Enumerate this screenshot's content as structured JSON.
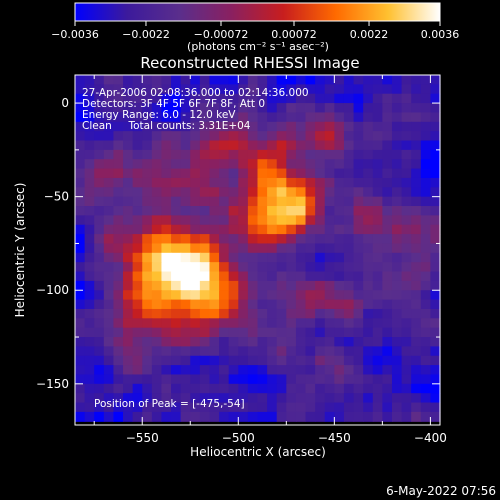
{
  "chart_data": {
    "type": "heatmap",
    "title": "Reconstructed RHESSI Image",
    "xlabel": "Heliocentric X (arcsec)",
    "ylabel": "Heliocentric Y (arcsec)",
    "xlim": [
      -585,
      -395
    ],
    "ylim": [
      -172,
      15
    ],
    "x_ticks": [
      -550,
      -500,
      -450,
      -400
    ],
    "y_ticks": [
      0,
      -50,
      -100,
      -150
    ],
    "x_tick_labels": [
      "−550",
      "−500",
      "−450",
      "−400"
    ],
    "y_tick_labels": [
      "0",
      "−50",
      "−100",
      "−150"
    ],
    "colorbar": {
      "range": [
        -0.0036,
        0.0036
      ],
      "ticks": [
        -0.0036,
        -0.0022,
        -0.00072,
        0.00072,
        0.0022,
        0.0036
      ],
      "tick_labels": [
        "−0.0036",
        "−0.0022",
        "−0.00072",
        "0.00072",
        "0.0022",
        "0.0036"
      ],
      "unit_label": "(photons cm⁻² s⁻¹ asec⁻²)",
      "colormap": [
        "#0000ff",
        "#3c1a9c",
        "#5a2e8c",
        "#8a2060",
        "#c81e1e",
        "#ff6a00",
        "#ffc030",
        "#ffffff"
      ]
    },
    "annotations": {
      "time_range": "27-Apr-2006 02:08:36.000 to 02:14:36.000",
      "detectors": "Detectors: 3F 4F 5F 6F 7F 8F, Att 0",
      "energy": "Energy Range: 6.0 - 12.0 keV",
      "method": "Clean     Total counts: 3.31E+04",
      "peak": "Position of Peak = [-475,-54]"
    },
    "peak": [
      -475,
      -54
    ],
    "emission_sources": [
      {
        "x": -478,
        "y": -55,
        "sigma_x": 14,
        "sigma_y": 16,
        "amplitude": 1.0
      },
      {
        "x": -520,
        "y": -100,
        "sigma_x": 22,
        "sigma_y": 18,
        "amplitude": 0.85
      },
      {
        "x": -540,
        "y": -85,
        "sigma_x": 18,
        "sigma_y": 15,
        "amplitude": 0.7
      },
      {
        "x": -545,
        "y": -40,
        "sigma_x": 22,
        "sigma_y": 14,
        "amplitude": 0.45
      },
      {
        "x": -500,
        "y": -25,
        "sigma_x": 25,
        "sigma_y": 12,
        "amplitude": 0.35
      },
      {
        "x": -455,
        "y": -15,
        "sigma_x": 16,
        "sigma_y": 10,
        "amplitude": 0.3
      },
      {
        "x": -430,
        "y": -60,
        "sigma_x": 14,
        "sigma_y": 15,
        "amplitude": 0.38
      },
      {
        "x": -405,
        "y": -90,
        "sigma_x": 12,
        "sigma_y": 20,
        "amplitude": 0.35
      },
      {
        "x": -455,
        "y": -110,
        "sigma_x": 14,
        "sigma_y": 14,
        "amplitude": 0.35
      },
      {
        "x": -555,
        "y": -125,
        "sigma_x": 12,
        "sigma_y": 14,
        "amplitude": 0.3
      },
      {
        "x": -460,
        "y": -150,
        "sigma_x": 12,
        "sigma_y": 10,
        "amplitude": 0.3
      }
    ],
    "background_level": -0.2
  },
  "footer_date": "6-May-2022 07:56"
}
